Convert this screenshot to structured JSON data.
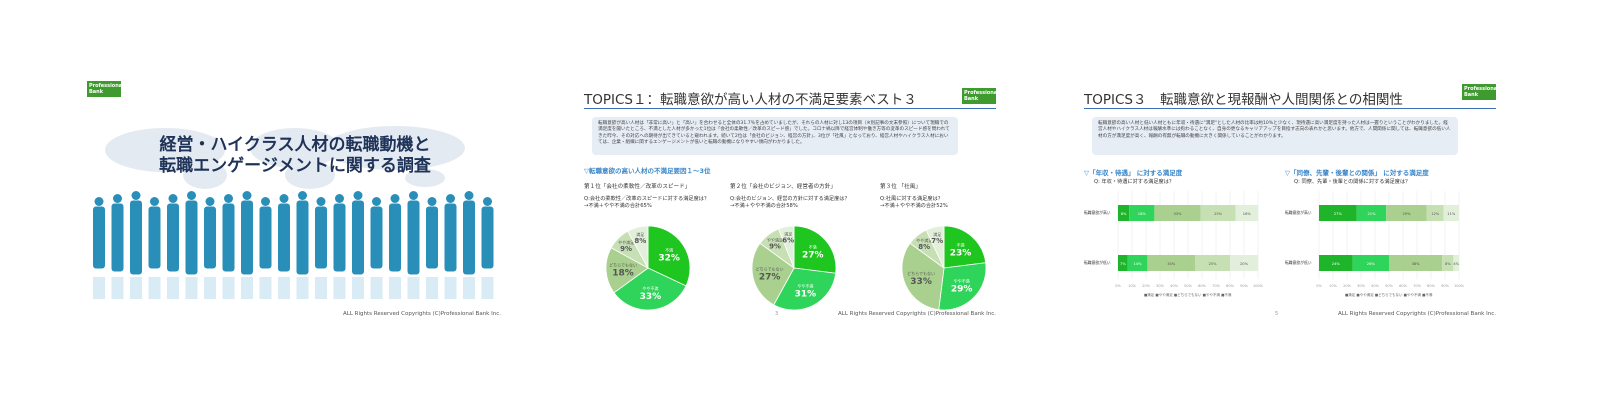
{
  "logo_text": "Professional Bank",
  "footer": "ALL Rights Reserved Copyrights (C)Professional Bank Inc.",
  "slide1": {
    "title_line1": "経営・ハイクラス人材の転職動機と",
    "title_line2": "転職エンゲージメントに関する調査"
  },
  "slide2": {
    "title": "TOPICS１：転職意欲が高い人材の不満足要素ベスト３",
    "intro": "転職意欲が高い人材は「非常に高い」と「高い」を合わせると全体の31.7％を占めていましたが、それらの人材に対し13の項目（※別記事の文末参照）について現職での満足度を聞いたところ、不満とした人材が多かった1位は「会社の柔軟性／改革のスピード感」でした。コロナ禍以降で経営体制や働き方等の変革のスピード感を問われてきた昨今、その対応への期待が出てきていると窺われます。続いて2位は「会社のビジョン、経営の方針」、3位が「社風」となっており、経営人材やハイクラス人材においては、企業・組織に関するエンゲージメントが低いと転職の動機になりやすい傾向がわかりました。",
    "subhead": "▽転職意欲の高い人材の不満足要因１～3位",
    "page": "3",
    "charts": [
      {
        "rank": "第１位「会社の柔軟性／改革のスピード」",
        "q1": "Q:会社の柔軟性／改革のスピードに対する満足度は？",
        "q2": "→不満＋やや不満の合計65%",
        "slices": [
          {
            "label": "不満",
            "value": 32,
            "color": "#1fc61f"
          },
          {
            "label": "やや不満",
            "value": 33,
            "color": "#2fd45a"
          },
          {
            "label": "どちらでもない",
            "value": 18,
            "color": "#a9d08e"
          },
          {
            "label": "やや満足",
            "value": 9,
            "color": "#c6e0b4"
          },
          {
            "label": "満足",
            "value": 8,
            "color": "#e2efda"
          }
        ]
      },
      {
        "rank": "第２位「会社のビジョン、経営者の方針」",
        "q1": "Q:会社のビジョン、経営の方針に対する満足度は？",
        "q2": "→不満＋やや不満の合計58%",
        "slices": [
          {
            "label": "不満",
            "value": 27,
            "color": "#1fc61f"
          },
          {
            "label": "やや不満",
            "value": 31,
            "color": "#2fd45a"
          },
          {
            "label": "どちらでもない",
            "value": 27,
            "color": "#a9d08e"
          },
          {
            "label": "やや満足",
            "value": 9,
            "color": "#c6e0b4"
          },
          {
            "label": "満足",
            "value": 6,
            "color": "#e2efda"
          }
        ]
      },
      {
        "rank": "第３位 「社風」",
        "q1": "Q:社風に対する満足度は？",
        "q2": "→不満＋やや不満の合計52%",
        "slices": [
          {
            "label": "不満",
            "value": 23,
            "color": "#1fc61f"
          },
          {
            "label": "やや不満",
            "value": 29,
            "color": "#2fd45a"
          },
          {
            "label": "どちらでもない",
            "value": 33,
            "color": "#a9d08e"
          },
          {
            "label": "やや満足",
            "value": 8,
            "color": "#c6e0b4"
          },
          {
            "label": "満足",
            "value": 7,
            "color": "#e2efda"
          }
        ]
      }
    ]
  },
  "slide3": {
    "title": "TOPICS３　転職意欲と現報酬や人間関係との相関性",
    "intro": "転職意欲の高い人材と低い人材ともに年収・待遇に\"満足\"とした人材の比率は約10%と少なく、現待遇に高い満足度を持った人材は一握りということがわかりました。経営人材やハイクラス人材は報酬水準には拘わることなく、自身の更なるキャリアアップを目指す志向の表れかと思います。他方で、人間関係に関しては、転職意欲の低い人材の方が満足度が高く、報酬の有無が転職の動機に大きく関係していることがわかります。",
    "left_head": "▽「年収・待遇」 に対する満足度",
    "left_q": "Q: 年収・待遇に対する満足度は？",
    "right_head": "▽「同僚、先輩・後輩との関係」 に対する満足度",
    "right_q": "Q: 同僚、先輩・後輩との関係に対する満足度は？",
    "row_high": "転職意欲が高い",
    "row_low": "転職意欲が低い",
    "legend": "■満足 ■やや満足 ■どちらでもない ■やや不満 ■不満",
    "page": "5",
    "left_bars": [
      {
        "values": [
          8,
          18,
          33,
          25,
          16
        ]
      },
      {
        "values": [
          7,
          14,
          34,
          25,
          20
        ]
      }
    ],
    "right_bars": [
      {
        "values": [
          27,
          21,
          29,
          12,
          11
        ]
      },
      {
        "values": [
          24,
          26,
          38,
          8,
          4
        ]
      }
    ],
    "bar_colors": [
      "#1fb52b",
      "#2fd45a",
      "#a9d08e",
      "#c6e0b4",
      "#e2efda"
    ]
  }
}
